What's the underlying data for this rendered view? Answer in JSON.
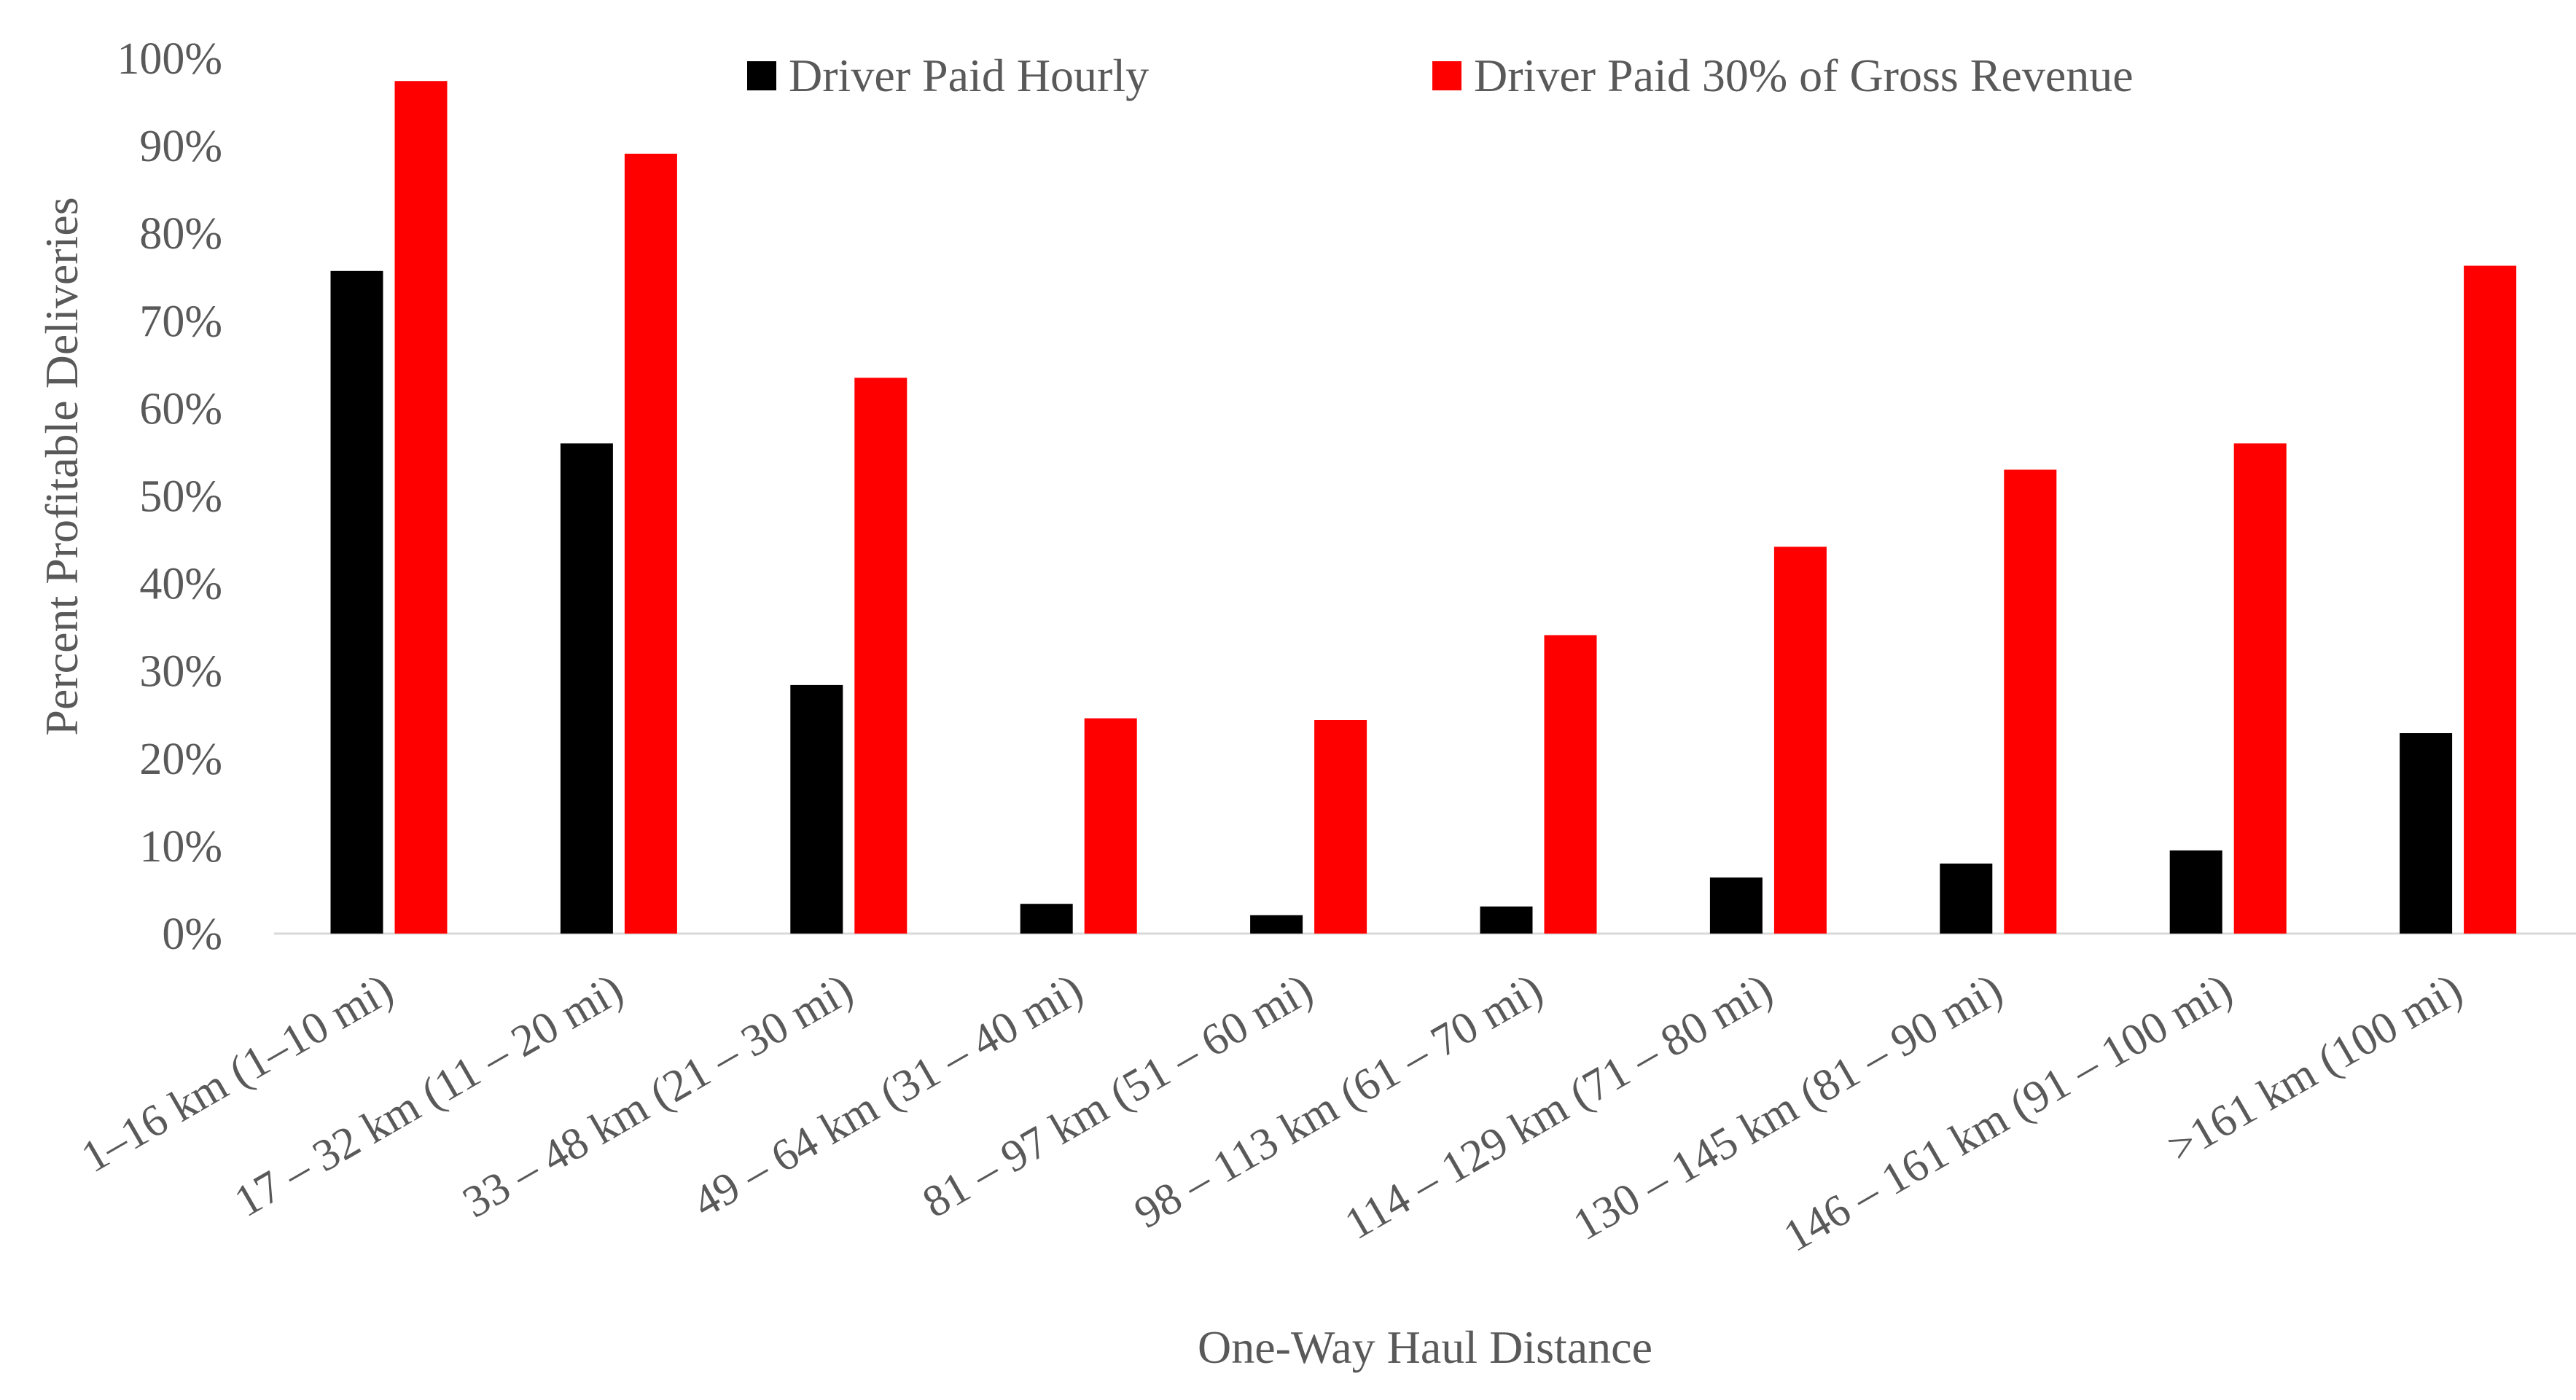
{
  "chart_data": {
    "type": "bar",
    "title": "",
    "xlabel": "One-Way Haul Distance",
    "ylabel": "Percent Profitable Deliveries",
    "ylim": [
      0,
      100
    ],
    "y_ticks": [
      "0%",
      "10%",
      "20%",
      "30%",
      "40%",
      "50%",
      "60%",
      "70%",
      "80%",
      "90%",
      "100%"
    ],
    "grid": false,
    "legend_position": "top",
    "categories": [
      "1–16 km (1–10 mi)",
      "17 – 32 km (11 – 20 mi)",
      "33 – 48 km (21 – 30 mi)",
      "49 – 64 km (31 – 40 mi)",
      "81 – 97 km (51 – 60 mi)",
      "98 – 113 km (61 – 70 mi)",
      "114 – 129 km (71 – 80 mi)",
      "130 – 145 km (81 – 90 mi)",
      "146 – 161 km (91 – 100 mi)",
      ">161 km (100 mi)"
    ],
    "series": [
      {
        "name": "Driver Paid Hourly",
        "color": "#000000",
        "values": [
          75.7,
          56.0,
          28.4,
          3.4,
          2.1,
          3.1,
          6.4,
          8.0,
          9.5,
          22.9
        ]
      },
      {
        "name": "Driver Paid 30% of Gross Revenue",
        "color": "#ff0000",
        "values": [
          97.4,
          89.1,
          63.5,
          24.6,
          24.4,
          34.1,
          44.2,
          53.0,
          56.0,
          76.3
        ]
      }
    ]
  }
}
